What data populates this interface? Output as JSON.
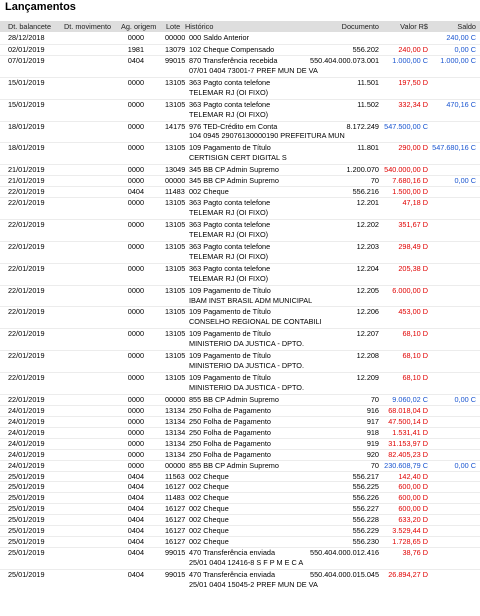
{
  "title": "Lançamentos",
  "headers": {
    "dt_balancete": "Dt. balancete",
    "dt_movimento": "Dt. movimento",
    "ag_origem": "Ag. origem",
    "lote": "Lote",
    "historico": "Histórico",
    "documento": "Documento",
    "valor": "Valor R$",
    "saldo": "Saldo"
  },
  "colors": {
    "debit": "#e00000",
    "credit": "#1a55d0",
    "header_bg": "#dedede"
  },
  "rows": [
    {
      "type": "tx",
      "dt": "28/12/2018",
      "orig": "0000",
      "lote": "00000",
      "hist": "000 Saldo Anterior",
      "doc": "",
      "val": "",
      "vc": "",
      "sal": "240,00 C"
    },
    {
      "type": "tx",
      "dt": "02/01/2019",
      "orig": "1981",
      "lote": "13079",
      "hist": "102 Cheque Compensado",
      "doc": "556.202",
      "val": "240,00 D",
      "vc": "red",
      "sal": "0,00 C"
    },
    {
      "type": "tx",
      "dt": "07/01/2019",
      "orig": "0404",
      "lote": "99015",
      "hist": "870 Transferência recebida",
      "doc": "550.404.000.073.001",
      "val": "1.000,00 C",
      "vc": "blue",
      "sal": "1.000,00 C"
    },
    {
      "type": "detail",
      "text": "07/01 0404 73001-7 PREF MUN DE VA"
    },
    {
      "type": "tx",
      "dt": "15/01/2019",
      "orig": "0000",
      "lote": "13105",
      "hist": "363 Pagto conta telefone",
      "doc": "11.501",
      "val": "197,50 D",
      "vc": "red",
      "sal": ""
    },
    {
      "type": "detail",
      "text": "TELEMAR RJ (OI FIXO)"
    },
    {
      "type": "tx",
      "dt": "15/01/2019",
      "orig": "0000",
      "lote": "13105",
      "hist": "363 Pagto conta telefone",
      "doc": "11.502",
      "val": "332,34 D",
      "vc": "red",
      "sal": "470,16 C"
    },
    {
      "type": "detail",
      "text": "TELEMAR RJ (OI FIXO)"
    },
    {
      "type": "tx",
      "dt": "18/01/2019",
      "orig": "0000",
      "lote": "14175",
      "hist": "976 TED-Crédito em Conta",
      "doc": "8.172.249",
      "val": "547.500,00 C",
      "vc": "blue",
      "sal": ""
    },
    {
      "type": "detail",
      "text": "104 0945 29076130000190 PREFEITURA MUN"
    },
    {
      "type": "tx",
      "dt": "18/01/2019",
      "orig": "0000",
      "lote": "13105",
      "hist": "109 Pagamento de Título",
      "doc": "11.801",
      "val": "290,00 D",
      "vc": "red",
      "sal": "547.680,16 C"
    },
    {
      "type": "detail",
      "text": "CERTISIGN CERT DIGITAL S"
    },
    {
      "type": "tx",
      "dt": "21/01/2019",
      "orig": "0000",
      "lote": "13049",
      "hist": "345 BB CP Admin Supremo",
      "doc": "1.200.070",
      "val": "540.000,00 D",
      "vc": "red",
      "sal": ""
    },
    {
      "type": "tx",
      "dt": "21/01/2019",
      "orig": "0000",
      "lote": "00000",
      "hist": "345 BB CP Admin Supremo",
      "doc": "70",
      "val": "7.680,16 D",
      "vc": "red",
      "sal": "0,00 C"
    },
    {
      "type": "tx",
      "dt": "22/01/2019",
      "orig": "0404",
      "lote": "11483",
      "hist": "002 Cheque",
      "doc": "556.216",
      "val": "1.500,00 D",
      "vc": "red",
      "sal": ""
    },
    {
      "type": "tx",
      "dt": "22/01/2019",
      "orig": "0000",
      "lote": "13105",
      "hist": "363 Pagto conta telefone",
      "doc": "12.201",
      "val": "47,18 D",
      "vc": "red",
      "sal": ""
    },
    {
      "type": "detail",
      "text": "TELEMAR RJ (OI FIXO)"
    },
    {
      "type": "tx",
      "dt": "22/01/2019",
      "orig": "0000",
      "lote": "13105",
      "hist": "363 Pagto conta telefone",
      "doc": "12.202",
      "val": "351,67 D",
      "vc": "red",
      "sal": ""
    },
    {
      "type": "detail",
      "text": "TELEMAR RJ (OI FIXO)"
    },
    {
      "type": "tx",
      "dt": "22/01/2019",
      "orig": "0000",
      "lote": "13105",
      "hist": "363 Pagto conta telefone",
      "doc": "12.203",
      "val": "298,49 D",
      "vc": "red",
      "sal": ""
    },
    {
      "type": "detail",
      "text": "TELEMAR RJ (OI FIXO)"
    },
    {
      "type": "tx",
      "dt": "22/01/2019",
      "orig": "0000",
      "lote": "13105",
      "hist": "363 Pagto conta telefone",
      "doc": "12.204",
      "val": "205,38 D",
      "vc": "red",
      "sal": ""
    },
    {
      "type": "detail",
      "text": "TELEMAR RJ (OI FIXO)"
    },
    {
      "type": "tx",
      "dt": "22/01/2019",
      "orig": "0000",
      "lote": "13105",
      "hist": "109 Pagamento de Título",
      "doc": "12.205",
      "val": "6.000,00 D",
      "vc": "red",
      "sal": ""
    },
    {
      "type": "detail",
      "text": "IBAM INST BRASIL ADM MUNICIPAL"
    },
    {
      "type": "tx",
      "dt": "22/01/2019",
      "orig": "0000",
      "lote": "13105",
      "hist": "109 Pagamento de Título",
      "doc": "12.206",
      "val": "453,00 D",
      "vc": "red",
      "sal": ""
    },
    {
      "type": "detail",
      "text": "CONSELHO REGIONAL DE CONTABILI"
    },
    {
      "type": "tx",
      "dt": "22/01/2019",
      "orig": "0000",
      "lote": "13105",
      "hist": "109 Pagamento de Título",
      "doc": "12.207",
      "val": "68,10 D",
      "vc": "red",
      "sal": ""
    },
    {
      "type": "detail",
      "text": "MINISTERIO DA JUSTICA - DPTO."
    },
    {
      "type": "tx",
      "dt": "22/01/2019",
      "orig": "0000",
      "lote": "13105",
      "hist": "109 Pagamento de Título",
      "doc": "12.208",
      "val": "68,10 D",
      "vc": "red",
      "sal": ""
    },
    {
      "type": "detail",
      "text": "MINISTERIO DA JUSTICA - DPTO."
    },
    {
      "type": "tx",
      "dt": "22/01/2019",
      "orig": "0000",
      "lote": "13105",
      "hist": "109 Pagamento de Título",
      "doc": "12.209",
      "val": "68,10 D",
      "vc": "red",
      "sal": ""
    },
    {
      "type": "detail",
      "text": "MINISTERIO DA JUSTICA - DPTO."
    },
    {
      "type": "tx",
      "dt": "22/01/2019",
      "orig": "0000",
      "lote": "00000",
      "hist": "855 BB CP Admin Supremo",
      "doc": "70",
      "val": "9.060,02 C",
      "vc": "blue",
      "sal": "0,00 C"
    },
    {
      "type": "tx",
      "dt": "24/01/2019",
      "orig": "0000",
      "lote": "13134",
      "hist": "250 Folha de Pagamento",
      "doc": "916",
      "val": "68.018,04 D",
      "vc": "red",
      "sal": ""
    },
    {
      "type": "tx",
      "dt": "24/01/2019",
      "orig": "0000",
      "lote": "13134",
      "hist": "250 Folha de Pagamento",
      "doc": "917",
      "val": "47.500,14 D",
      "vc": "red",
      "sal": ""
    },
    {
      "type": "tx",
      "dt": "24/01/2019",
      "orig": "0000",
      "lote": "13134",
      "hist": "250 Folha de Pagamento",
      "doc": "918",
      "val": "1.531,41 D",
      "vc": "red",
      "sal": ""
    },
    {
      "type": "tx",
      "dt": "24/01/2019",
      "orig": "0000",
      "lote": "13134",
      "hist": "250 Folha de Pagamento",
      "doc": "919",
      "val": "31.153,97 D",
      "vc": "red",
      "sal": ""
    },
    {
      "type": "tx",
      "dt": "24/01/2019",
      "orig": "0000",
      "lote": "13134",
      "hist": "250 Folha de Pagamento",
      "doc": "920",
      "val": "82.405,23 D",
      "vc": "red",
      "sal": ""
    },
    {
      "type": "tx",
      "dt": "24/01/2019",
      "orig": "0000",
      "lote": "00000",
      "hist": "855 BB CP Admin Supremo",
      "doc": "70",
      "val": "230.608,79 C",
      "vc": "blue",
      "sal": "0,00 C"
    },
    {
      "type": "tx",
      "dt": "25/01/2019",
      "orig": "0404",
      "lote": "11563",
      "hist": "002 Cheque",
      "doc": "556.217",
      "val": "142,40 D",
      "vc": "red",
      "sal": ""
    },
    {
      "type": "tx",
      "dt": "25/01/2019",
      "orig": "0404",
      "lote": "16127",
      "hist": "002 Cheque",
      "doc": "556.225",
      "val": "600,00 D",
      "vc": "red",
      "sal": ""
    },
    {
      "type": "tx",
      "dt": "25/01/2019",
      "orig": "0404",
      "lote": "11483",
      "hist": "002 Cheque",
      "doc": "556.226",
      "val": "600,00 D",
      "vc": "red",
      "sal": ""
    },
    {
      "type": "tx",
      "dt": "25/01/2019",
      "orig": "0404",
      "lote": "16127",
      "hist": "002 Cheque",
      "doc": "556.227",
      "val": "600,00 D",
      "vc": "red",
      "sal": ""
    },
    {
      "type": "tx",
      "dt": "25/01/2019",
      "orig": "0404",
      "lote": "16127",
      "hist": "002 Cheque",
      "doc": "556.228",
      "val": "633,20 D",
      "vc": "red",
      "sal": ""
    },
    {
      "type": "tx",
      "dt": "25/01/2019",
      "orig": "0404",
      "lote": "16127",
      "hist": "002 Cheque",
      "doc": "556.229",
      "val": "3.529,44 D",
      "vc": "red",
      "sal": ""
    },
    {
      "type": "tx",
      "dt": "25/01/2019",
      "orig": "0404",
      "lote": "16127",
      "hist": "002 Cheque",
      "doc": "556.230",
      "val": "1.728,65 D",
      "vc": "red",
      "sal": ""
    },
    {
      "type": "tx",
      "dt": "25/01/2019",
      "orig": "0404",
      "lote": "99015",
      "hist": "470 Transferência enviada",
      "doc": "550.404.000.012.416",
      "val": "38,76 D",
      "vc": "red",
      "sal": ""
    },
    {
      "type": "detail",
      "text": "25/01 0404 12416-8 S F P M E C A"
    },
    {
      "type": "tx",
      "dt": "25/01/2019",
      "orig": "0404",
      "lote": "99015",
      "hist": "470 Transferência enviada",
      "doc": "550.404.000.015.045",
      "val": "26.894,27 D",
      "vc": "red",
      "sal": ""
    },
    {
      "type": "detail",
      "text": "25/01 0404 15045-2 PREF MUN DE VA"
    }
  ]
}
